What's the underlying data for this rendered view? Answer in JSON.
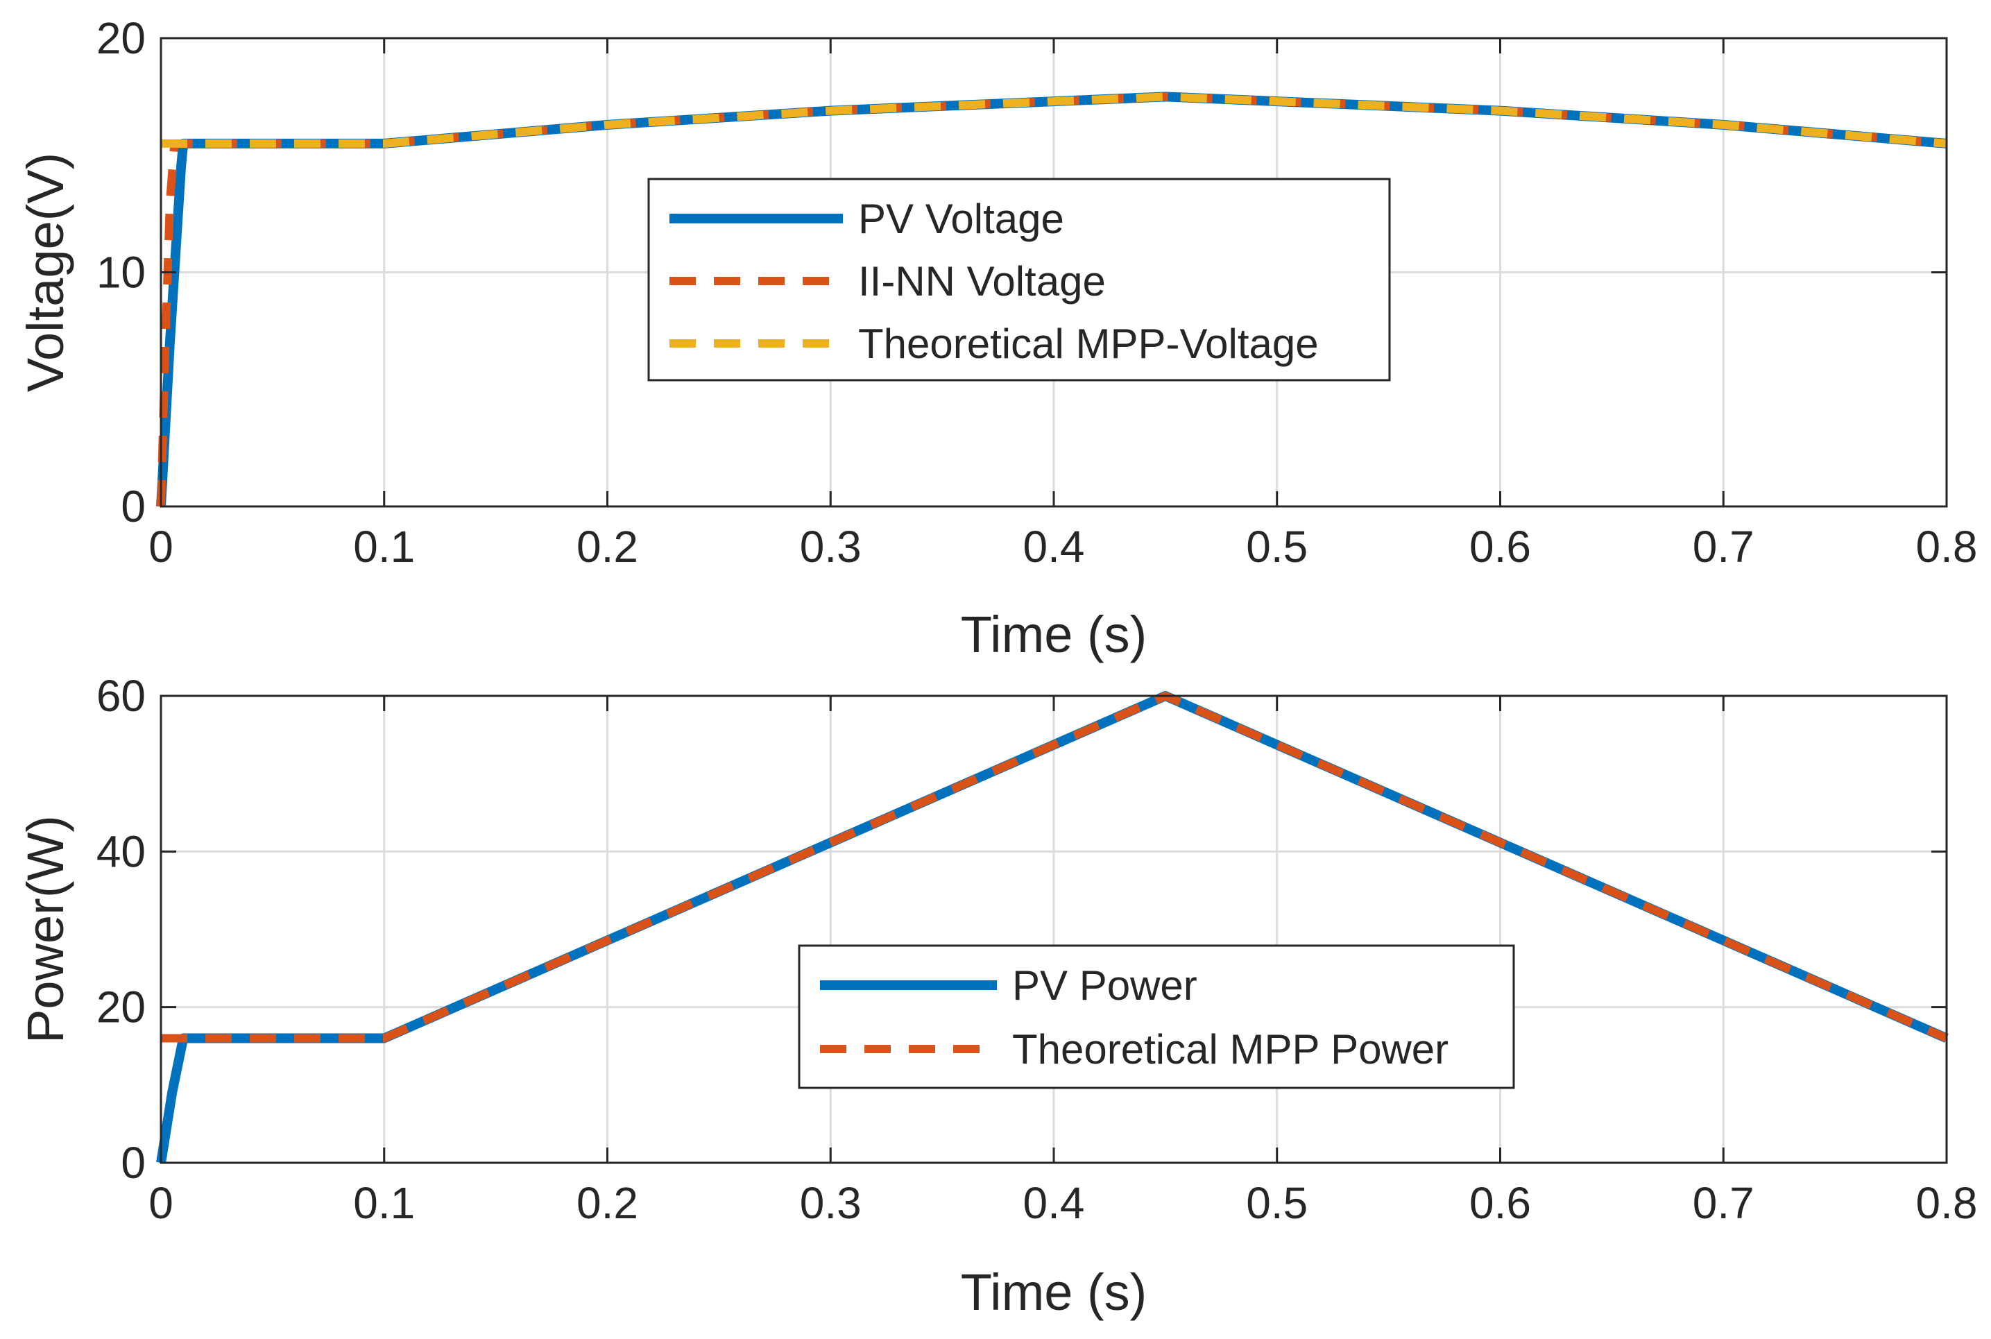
{
  "chart_data": [
    {
      "type": "line",
      "xlabel": "Time (s)",
      "ylabel": "Voltage(V)",
      "xlim": [
        0,
        0.8
      ],
      "ylim": [
        0,
        20
      ],
      "xticks": [
        0,
        0.1,
        0.2,
        0.3,
        0.4,
        0.5,
        0.6,
        0.7,
        0.8
      ],
      "xtick_labels": [
        "0",
        "0.1",
        "0.2",
        "0.3",
        "0.4",
        "0.5",
        "0.6",
        "0.7",
        "0.8"
      ],
      "yticks": [
        0,
        10,
        20
      ],
      "ytick_labels": [
        "0",
        "10",
        "20"
      ],
      "grid": true,
      "legend_position": "center",
      "series": [
        {
          "name": "PV Voltage",
          "style": "solid",
          "color": "#0072BD",
          "x": [
            0,
            0.004,
            0.009,
            0.01,
            0.1,
            0.2,
            0.3,
            0.4,
            0.45,
            0.5,
            0.6,
            0.7,
            0.8
          ],
          "y": [
            0,
            7,
            14.5,
            15.5,
            15.5,
            16.3,
            16.9,
            17.3,
            17.5,
            17.3,
            16.9,
            16.3,
            15.5
          ]
        },
        {
          "name": "II-NN Voltage",
          "style": "dashed",
          "color": "#D95319",
          "x": [
            0,
            0.002,
            0.004,
            0.006,
            0.1,
            0.2,
            0.3,
            0.4,
            0.45,
            0.5,
            0.6,
            0.7,
            0.8
          ],
          "y": [
            0,
            7,
            13,
            15.5,
            15.5,
            16.3,
            16.9,
            17.3,
            17.5,
            17.3,
            16.9,
            16.3,
            15.5
          ]
        },
        {
          "name": "Theoretical MPP-Voltage",
          "style": "dashed",
          "color": "#EDB120",
          "x": [
            0,
            0.1,
            0.2,
            0.3,
            0.4,
            0.45,
            0.5,
            0.6,
            0.7,
            0.8
          ],
          "y": [
            15.5,
            15.5,
            16.3,
            16.9,
            17.3,
            17.5,
            17.3,
            16.9,
            16.3,
            15.5
          ]
        }
      ]
    },
    {
      "type": "line",
      "xlabel": "Time (s)",
      "ylabel": "Power(W)",
      "xlim": [
        0,
        0.8
      ],
      "ylim": [
        0,
        60
      ],
      "xticks": [
        0,
        0.1,
        0.2,
        0.3,
        0.4,
        0.5,
        0.6,
        0.7,
        0.8
      ],
      "xtick_labels": [
        "0",
        "0.1",
        "0.2",
        "0.3",
        "0.4",
        "0.5",
        "0.6",
        "0.7",
        "0.8"
      ],
      "yticks": [
        0,
        20,
        40,
        60
      ],
      "ytick_labels": [
        "0",
        "20",
        "40",
        "60"
      ],
      "grid": true,
      "legend_position": "center",
      "series": [
        {
          "name": "PV Power",
          "style": "solid",
          "color": "#0072BD",
          "x": [
            0,
            0.005,
            0.01,
            0.1,
            0.45,
            0.8
          ],
          "y": [
            0,
            9,
            16,
            16,
            60,
            16
          ]
        },
        {
          "name": "Theoretical MPP Power",
          "style": "dashed",
          "color": "#D95319",
          "x": [
            0,
            0.1,
            0.45,
            0.8
          ],
          "y": [
            16,
            16,
            60,
            16
          ]
        }
      ]
    }
  ]
}
